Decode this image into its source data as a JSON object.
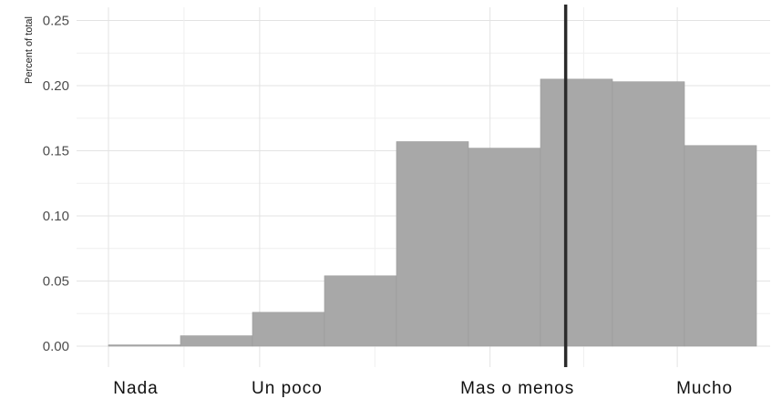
{
  "chart_data": {
    "type": "bar",
    "ylabel": "Percent of total",
    "ylim": [
      0,
      0.26
    ],
    "y_ticks": [
      "0.00",
      "0.05",
      "0.10",
      "0.15",
      "0.20",
      "0.25"
    ],
    "x_range": [
      0.5,
      10.5
    ],
    "x_tick_labels": [
      {
        "label": "Nada",
        "x": 1
      },
      {
        "label": "Un poco",
        "x": 3.1
      },
      {
        "label": "Mas o menos",
        "x": 6.3
      },
      {
        "label": "Mucho",
        "x": 8.9
      }
    ],
    "bins": [
      {
        "from": 1,
        "to": 2,
        "value": 0.001
      },
      {
        "from": 2,
        "to": 3,
        "value": 0.008
      },
      {
        "from": 3,
        "to": 4,
        "value": 0.026
      },
      {
        "from": 4,
        "to": 5,
        "value": 0.054
      },
      {
        "from": 5,
        "to": 6,
        "value": 0.157
      },
      {
        "from": 6,
        "to": 7,
        "value": 0.152
      },
      {
        "from": 7,
        "to": 8,
        "value": 0.205
      },
      {
        "from": 8,
        "to": 9,
        "value": 0.203
      },
      {
        "from": 9,
        "to": 10,
        "value": 0.154
      }
    ],
    "reference_line_x": 7.35,
    "grid": true,
    "colors": {
      "bar_fill": "#a8a8a8",
      "bar_stroke": "#9a9a9a",
      "reference_line": "#2b2b2b",
      "grid_major": "#e3e3e3",
      "grid_minor": "#efefef"
    }
  }
}
